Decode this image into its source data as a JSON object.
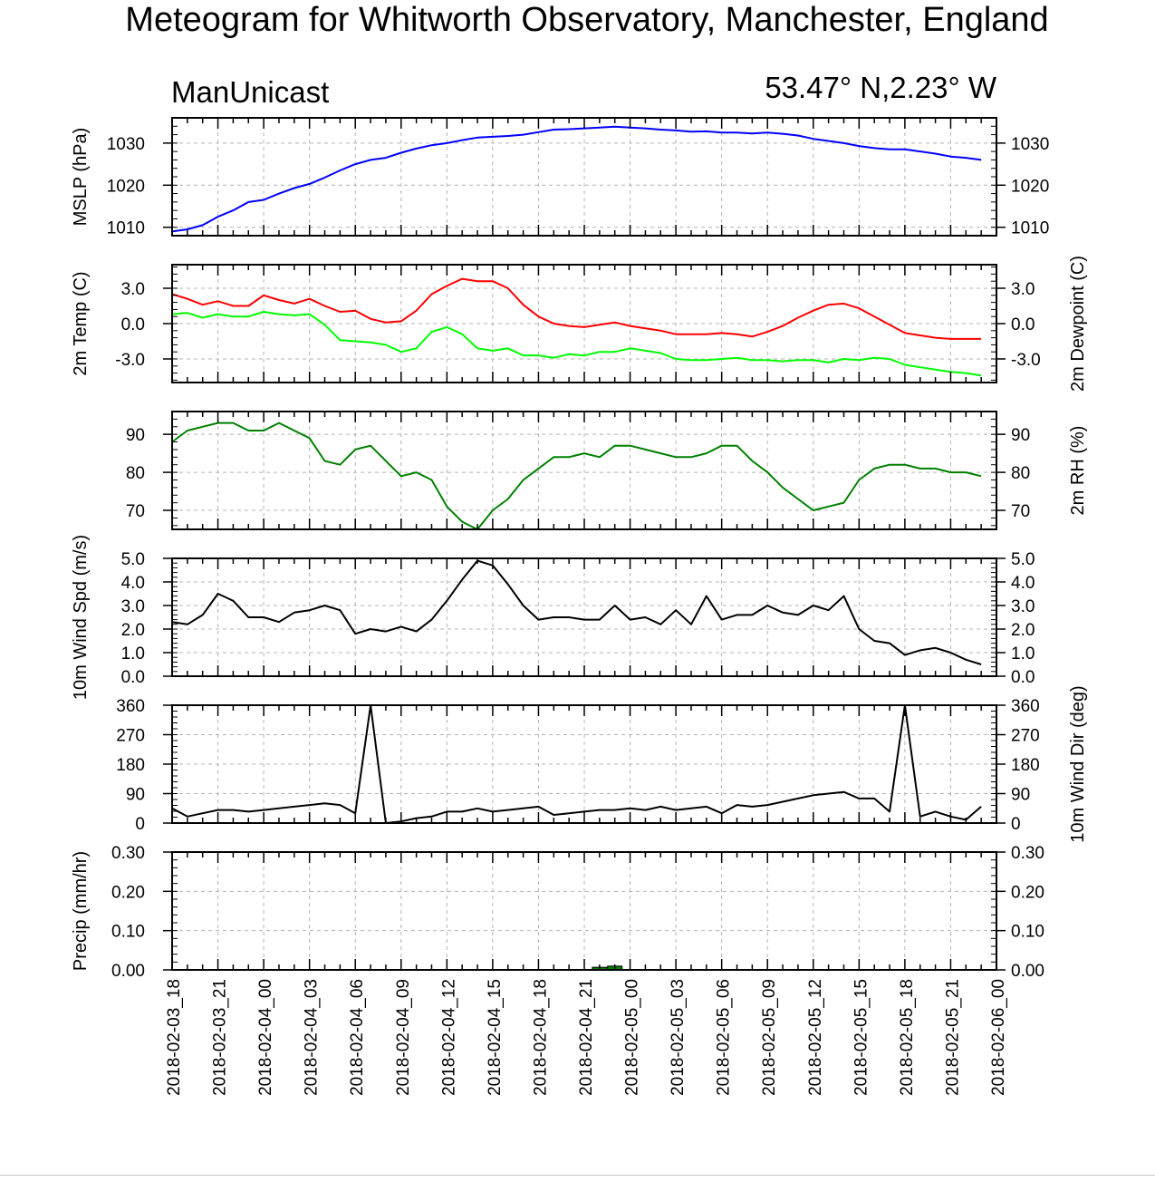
{
  "title": "Meteogram for Whitworth Observatory, Manchester, England",
  "subtitle_left": "ManUnicast",
  "subtitle_right": "53.47° N,2.23° W",
  "x_tick_labels": [
    "2018-02-03_18",
    "2018-02-03_21",
    "2018-02-04_00",
    "2018-02-04_03",
    "2018-02-04_06",
    "2018-02-04_09",
    "2018-02-04_12",
    "2018-02-04_15",
    "2018-02-04_18",
    "2018-02-04_21",
    "2018-02-05_00",
    "2018-02-05_03",
    "2018-02-05_06",
    "2018-02-05_09",
    "2018-02-05_12",
    "2018-02-05_15",
    "2018-02-05_18",
    "2018-02-05_21",
    "2018-02-06_00"
  ],
  "chart_data": [
    {
      "type": "line",
      "name": "mslp",
      "ylabel_left": "MSLP (hPa)",
      "ylabel_right": "",
      "ylim": [
        1008,
        1036
      ],
      "yticks": [
        1010,
        1020,
        1030
      ],
      "tick_labels_left": [
        "1010",
        "1020",
        "1030"
      ],
      "tick_labels_right": [
        "1010",
        "1020",
        "1030"
      ],
      "grid": true,
      "x_hours_start": 0,
      "x_hours_step": 1,
      "series": [
        {
          "color": "#0000ff",
          "values": [
            1009,
            1009.5,
            1010.5,
            1012.5,
            1014,
            1016,
            1016.5,
            1018,
            1019.3,
            1020.3,
            1021.8,
            1023.5,
            1025,
            1026,
            1026.5,
            1027.7,
            1028.7,
            1029.5,
            1030,
            1030.7,
            1031.3,
            1031.5,
            1031.7,
            1032,
            1032.6,
            1033.2,
            1033.3,
            1033.5,
            1033.7,
            1033.9,
            1033.7,
            1033.5,
            1033.2,
            1033,
            1032.7,
            1032.8,
            1032.5,
            1032.5,
            1032.3,
            1032.5,
            1032.2,
            1031.8,
            1031,
            1030.5,
            1030,
            1029.3,
            1028.8,
            1028.5,
            1028.5,
            1028,
            1027.5,
            1026.8,
            1026.5,
            1026
          ]
        }
      ]
    },
    {
      "type": "line",
      "name": "temperature",
      "ylabel_left": "2m Temp (C)",
      "ylabel_right": "2m Dewpoint (C)",
      "ylim": [
        -5,
        5
      ],
      "yticks": [
        -3,
        0,
        3
      ],
      "tick_labels_left": [
        "-3.0",
        "0.0",
        "3.0"
      ],
      "tick_labels_right": [
        "-3.0",
        "0.0",
        "3.0"
      ],
      "grid": true,
      "x_hours_start": 0,
      "x_hours_step": 1,
      "series": [
        {
          "color": "#ff0000",
          "values": [
            2.5,
            2.1,
            1.6,
            1.9,
            1.5,
            1.5,
            2.4,
            2.0,
            1.7,
            2.1,
            1.5,
            1.0,
            1.1,
            0.4,
            0.1,
            0.2,
            1.1,
            2.5,
            3.2,
            3.8,
            3.6,
            3.6,
            3.0,
            1.6,
            0.6,
            0,
            -0.2,
            -0.3,
            -0.1,
            0.1,
            -0.2,
            -0.4,
            -0.6,
            -0.9,
            -0.9,
            -0.9,
            -0.8,
            -0.9,
            -1.1,
            -0.7,
            -0.2,
            0.5,
            1.1,
            1.6,
            1.7,
            1.3,
            0.6,
            -0.1,
            -0.8,
            -1.0,
            -1.2,
            -1.3,
            -1.3,
            -1.3
          ]
        },
        {
          "color": "#00ff00",
          "values": [
            0.8,
            0.9,
            0.5,
            0.8,
            0.6,
            0.6,
            1.0,
            0.8,
            0.7,
            0.8,
            -0.1,
            -1.4,
            -1.5,
            -1.6,
            -1.8,
            -2.4,
            -2.1,
            -0.7,
            -0.3,
            -0.9,
            -2.1,
            -2.3,
            -2.1,
            -2.7,
            -2.7,
            -2.9,
            -2.6,
            -2.7,
            -2.4,
            -2.4,
            -2.1,
            -2.3,
            -2.5,
            -3.0,
            -3.1,
            -3.1,
            -3.0,
            -2.9,
            -3.1,
            -3.1,
            -3.2,
            -3.1,
            -3.1,
            -3.3,
            -3.0,
            -3.1,
            -2.9,
            -3.0,
            -3.5,
            -3.7,
            -3.9,
            -4.1,
            -4.2,
            -4.4
          ]
        }
      ]
    },
    {
      "type": "line",
      "name": "relative-humidity",
      "ylabel_left": "",
      "ylabel_right": "2m RH (%)",
      "ylim": [
        65,
        96
      ],
      "yticks": [
        70,
        80,
        90
      ],
      "tick_labels_left": [
        "70",
        "80",
        "90"
      ],
      "tick_labels_right": [
        "70",
        "80",
        "90"
      ],
      "grid": true,
      "x_hours_start": 0,
      "x_hours_step": 1,
      "series": [
        {
          "color": "#008000",
          "values": [
            88,
            91,
            92,
            93,
            93,
            91,
            91,
            93,
            91,
            89,
            83,
            82,
            86,
            87,
            83,
            79,
            80,
            78,
            71,
            67,
            65,
            70,
            73,
            78,
            81,
            84,
            84,
            85,
            84,
            87,
            87,
            86,
            85,
            84,
            84,
            85,
            87,
            87,
            83,
            80,
            76,
            73,
            70,
            71,
            72,
            78,
            81,
            82,
            82,
            81,
            81,
            80,
            80,
            79
          ]
        }
      ]
    },
    {
      "type": "line",
      "name": "wind-speed",
      "ylabel_left": "10m Wind Spd (m/s)",
      "ylabel_right": "",
      "ylim": [
        0,
        5
      ],
      "yticks": [
        0,
        1,
        2,
        3,
        4,
        5
      ],
      "tick_labels_left": [
        "0.0",
        "1.0",
        "2.0",
        "3.0",
        "4.0",
        "5.0"
      ],
      "tick_labels_right": [
        "0.0",
        "1.0",
        "2.0",
        "3.0",
        "4.0",
        "5.0"
      ],
      "grid": true,
      "x_hours_start": 0,
      "x_hours_step": 1,
      "series": [
        {
          "color": "#000000",
          "values": [
            2.3,
            2.2,
            2.6,
            3.5,
            3.2,
            2.5,
            2.5,
            2.3,
            2.7,
            2.8,
            3.0,
            2.8,
            1.8,
            2.0,
            1.9,
            2.1,
            1.9,
            2.4,
            3.2,
            4.1,
            4.9,
            4.7,
            3.9,
            3.0,
            2.4,
            2.5,
            2.5,
            2.4,
            2.4,
            3.0,
            2.4,
            2.5,
            2.2,
            2.8,
            2.2,
            3.4,
            2.4,
            2.6,
            2.6,
            3.0,
            2.7,
            2.6,
            3.0,
            2.8,
            3.4,
            2.0,
            1.5,
            1.4,
            0.9,
            1.1,
            1.2,
            1.0,
            0.7,
            0.5
          ]
        }
      ]
    },
    {
      "type": "line",
      "name": "wind-direction",
      "ylabel_left": "",
      "ylabel_right": "10m Wind Dir (deg)",
      "ylim": [
        0,
        360
      ],
      "yticks": [
        0,
        90,
        180,
        270,
        360
      ],
      "tick_labels_left": [
        "0",
        "90",
        "180",
        "270",
        "360"
      ],
      "tick_labels_right": [
        "0",
        "90",
        "180",
        "270",
        "360"
      ],
      "grid": true,
      "x_hours_start": 0,
      "x_hours_step": 1,
      "series": [
        {
          "color": "#000000",
          "values": [
            45,
            20,
            30,
            40,
            40,
            35,
            40,
            45,
            50,
            55,
            60,
            55,
            30,
            360,
            0,
            5,
            15,
            20,
            35,
            35,
            45,
            35,
            40,
            45,
            50,
            25,
            30,
            35,
            40,
            40,
            45,
            40,
            50,
            40,
            45,
            50,
            30,
            55,
            50,
            55,
            65,
            75,
            85,
            90,
            95,
            75,
            75,
            35,
            360,
            20,
            35,
            20,
            10,
            50
          ]
        }
      ]
    },
    {
      "type": "bar",
      "name": "precipitation",
      "ylabel_left": "Precip (mm/hr)",
      "ylabel_right": "",
      "ylim": [
        0,
        0.3
      ],
      "yticks": [
        0,
        0.1,
        0.2,
        0.3
      ],
      "tick_labels_left": [
        "0.00",
        "0.10",
        "0.20",
        "0.30"
      ],
      "tick_labels_right": [
        "0.00",
        "0.10",
        "0.20",
        "0.30"
      ],
      "grid": true,
      "x_hours_start": 0,
      "x_hours_step": 1,
      "bars": [
        {
          "hour": 28,
          "value": 0.002,
          "color": "#008000"
        },
        {
          "hour": 29,
          "value": 0.005,
          "color": "#008000"
        }
      ]
    }
  ]
}
